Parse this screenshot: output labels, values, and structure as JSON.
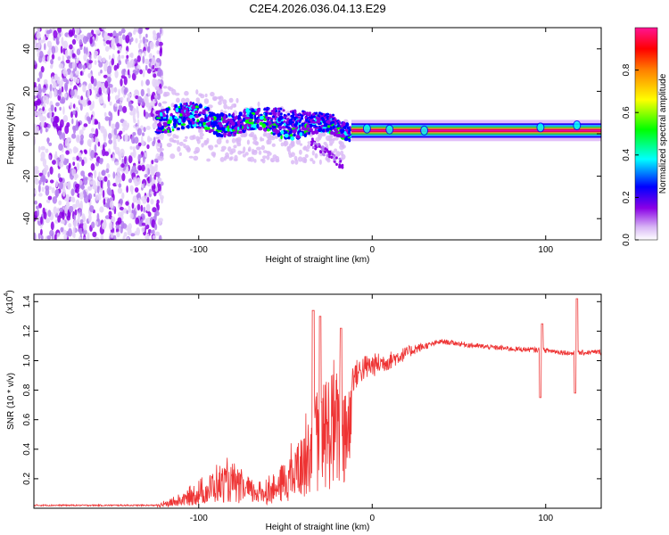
{
  "title": "C2E4.2026.036.04.13.E29",
  "chart_data": [
    {
      "type": "heatmap",
      "name": "spectrogram",
      "xlabel": "Height of straight line (km)",
      "ylabel": "Frequency (Hz)",
      "xlim": [
        -195,
        132
      ],
      "ylim": [
        -50,
        50
      ],
      "xticks": [
        -100,
        0,
        100
      ],
      "yticks": [
        -40,
        -20,
        0,
        20,
        40
      ],
      "signal_center_hz": 1.5,
      "noise_region_km": [
        -195,
        -125
      ],
      "colorbar": {
        "label": "Normalized spectral amplitude",
        "range": [
          0.0,
          1.0
        ],
        "ticks": [
          "0.0",
          "0.2",
          "0.4",
          "0.6",
          "0.8"
        ],
        "colormap": [
          "#ffffff",
          "#8a00e6",
          "#0000ff",
          "#00ffff",
          "#00ff00",
          "#ffff00",
          "#ff8000",
          "#ff0000",
          "#ff1493"
        ]
      }
    },
    {
      "type": "line",
      "name": "snr",
      "xlabel": "Height of straight line (km)",
      "ylabel": "SNR (10 * v/v)",
      "y_multiplier_label": "(x10",
      "y_multiplier_exp": "4",
      "xlim": [
        -195,
        132
      ],
      "ylim": [
        0,
        1.45
      ],
      "xticks": [
        -100,
        0,
        100
      ],
      "yticks": [
        "0.2",
        "0.4",
        "0.6",
        "0.8",
        "1.0",
        "1.2",
        "1.4"
      ],
      "color": "#ee3333",
      "envelope": [
        {
          "x": -195,
          "y": 0.02
        },
        {
          "x": -125,
          "y": 0.02
        },
        {
          "x": -110,
          "y": 0.08
        },
        {
          "x": -95,
          "y": 0.18
        },
        {
          "x": -85,
          "y": 0.26
        },
        {
          "x": -75,
          "y": 0.2
        },
        {
          "x": -65,
          "y": 0.15
        },
        {
          "x": -55,
          "y": 0.2
        },
        {
          "x": -45,
          "y": 0.35
        },
        {
          "x": -38,
          "y": 0.55
        },
        {
          "x": -30,
          "y": 0.7
        },
        {
          "x": -22,
          "y": 0.8
        },
        {
          "x": -15,
          "y": 0.85
        },
        {
          "x": -5,
          "y": 0.95
        },
        {
          "x": 10,
          "y": 1.0
        },
        {
          "x": 25,
          "y": 1.08
        },
        {
          "x": 40,
          "y": 1.13
        },
        {
          "x": 60,
          "y": 1.1
        },
        {
          "x": 80,
          "y": 1.08
        },
        {
          "x": 100,
          "y": 1.07
        },
        {
          "x": 115,
          "y": 1.05
        },
        {
          "x": 132,
          "y": 1.06
        }
      ],
      "features": [
        {
          "x": -34,
          "y": 1.34
        },
        {
          "x": -30,
          "y": 1.3
        },
        {
          "x": -18,
          "y": 1.22
        },
        {
          "x": 97,
          "y": 0.75
        },
        {
          "x": 98,
          "y": 1.25
        },
        {
          "x": 117,
          "y": 0.78
        },
        {
          "x": 118,
          "y": 1.42
        }
      ]
    }
  ]
}
